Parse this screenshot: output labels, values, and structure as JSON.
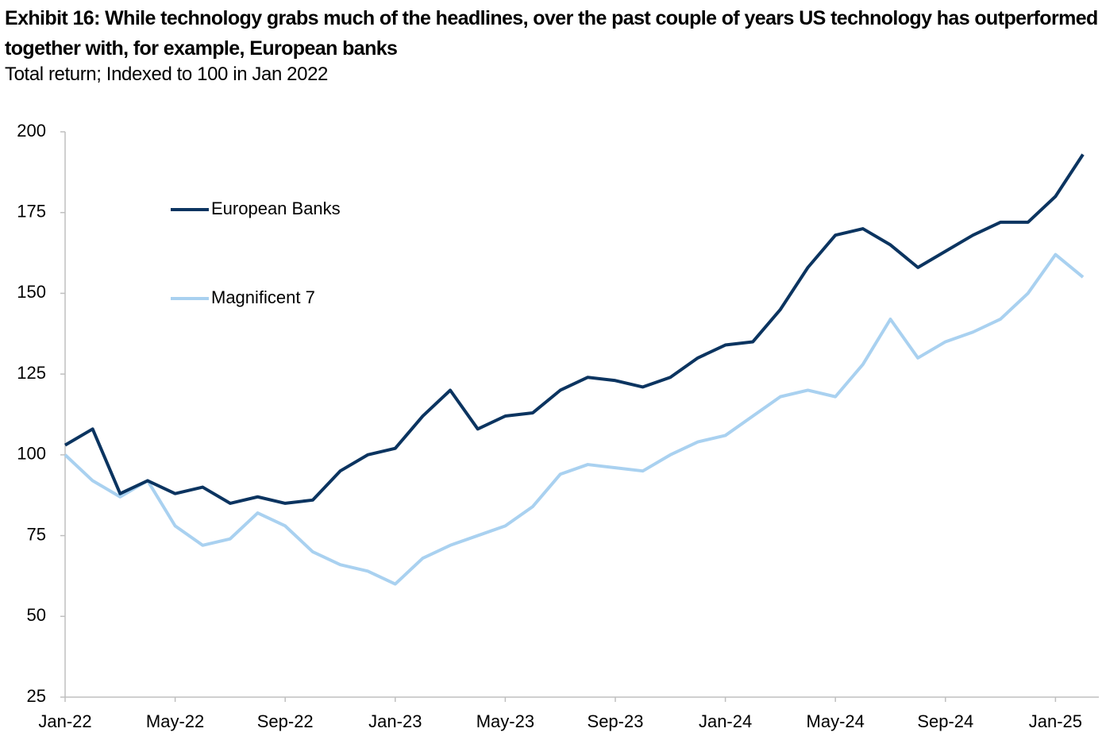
{
  "chart_data": {
    "type": "line",
    "title": "Exhibit 16: While technology grabs much of the headlines, over the past couple of years US technology has outperformed together with, for example, European banks",
    "subtitle": "Total return; Indexed to 100 in Jan 2022",
    "categories": [
      "Jan-22",
      null,
      null,
      null,
      "May-22",
      null,
      null,
      null,
      "Sep-22",
      null,
      null,
      null,
      "Jan-23",
      null,
      null,
      null,
      "May-23",
      null,
      null,
      null,
      "Sep-23",
      null,
      null,
      null,
      "Jan-24",
      null,
      null,
      null,
      "May-24",
      null,
      null,
      null,
      "Sep-24",
      null,
      null,
      null,
      "Jan-25",
      null
    ],
    "series": [
      {
        "name": "European Banks",
        "color": "#0b3460",
        "values": [
          103,
          108,
          88,
          92,
          88,
          90,
          85,
          87,
          85,
          86,
          95,
          100,
          102,
          112,
          120,
          108,
          112,
          113,
          120,
          124,
          123,
          121,
          124,
          130,
          134,
          135,
          145,
          158,
          168,
          170,
          165,
          158,
          163,
          168,
          172,
          172,
          180,
          193
        ]
      },
      {
        "name": "Magnificent 7",
        "color": "#a9d1f0",
        "values": [
          100,
          92,
          87,
          92,
          78,
          72,
          74,
          82,
          78,
          70,
          66,
          64,
          60,
          68,
          72,
          75,
          78,
          84,
          94,
          97,
          96,
          95,
          100,
          104,
          106,
          112,
          118,
          120,
          118,
          128,
          142,
          130,
          135,
          138,
          142,
          150,
          162,
          155
        ]
      }
    ],
    "ylim": [
      25,
      200
    ],
    "yticks": [
      25,
      50,
      75,
      100,
      125,
      150,
      175,
      200
    ],
    "grid": false
  }
}
